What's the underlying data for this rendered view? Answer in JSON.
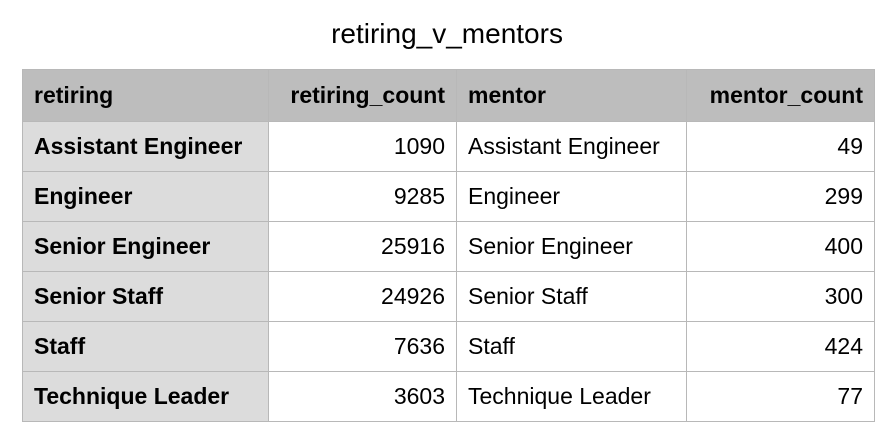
{
  "title": "retiring_v_mentors",
  "columns": [
    "retiring",
    "retiring_count",
    "mentor",
    "mentor_count"
  ],
  "rows": [
    {
      "retiring": "Assistant Engineer",
      "retiring_count": "1090",
      "mentor": "Assistant Engineer",
      "mentor_count": "49"
    },
    {
      "retiring": "Engineer",
      "retiring_count": "9285",
      "mentor": "Engineer",
      "mentor_count": "299"
    },
    {
      "retiring": "Senior Engineer",
      "retiring_count": "25916",
      "mentor": "Senior Engineer",
      "mentor_count": "400"
    },
    {
      "retiring": "Senior Staff",
      "retiring_count": "24926",
      "mentor": "Senior Staff",
      "mentor_count": "300"
    },
    {
      "retiring": "Staff",
      "retiring_count": "7636",
      "mentor": "Staff",
      "mentor_count": "424"
    },
    {
      "retiring": "Technique Leader",
      "retiring_count": "3603",
      "mentor": "Technique Leader",
      "mentor_count": "77"
    }
  ],
  "colors": {
    "header_bg": "#bdbdbd",
    "rowhead_bg": "#dcdcdc",
    "cell_bg": "#ffffff",
    "border": "#b8b8b8"
  }
}
